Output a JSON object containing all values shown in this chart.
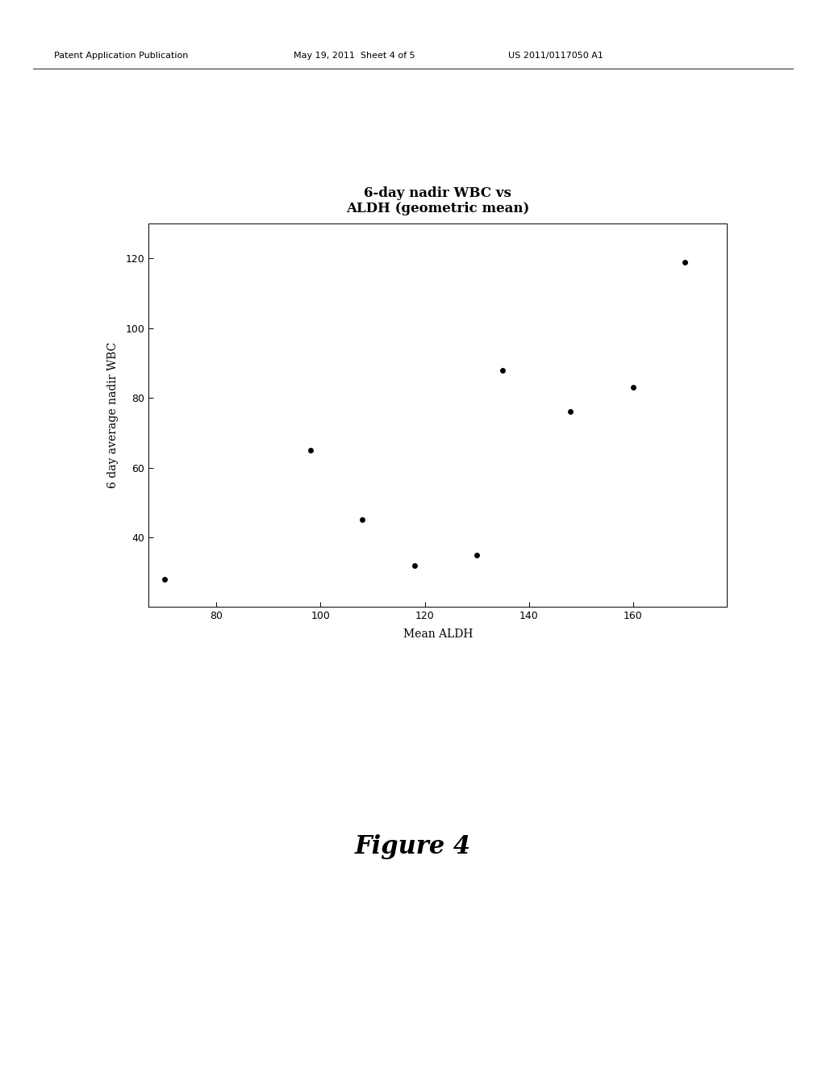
{
  "x": [
    70,
    98,
    108,
    118,
    130,
    135,
    148,
    160,
    170
  ],
  "y": [
    28,
    65,
    45,
    32,
    35,
    88,
    76,
    83,
    119
  ],
  "title_line1": "6-day nadir WBC vs",
  "title_line2": "ALDH (geometric mean)",
  "xlabel": "Mean ALDH",
  "ylabel": "6 day average nadir WBC",
  "xlim": [
    67,
    178
  ],
  "ylim": [
    20,
    130
  ],
  "xticks": [
    80,
    100,
    120,
    140,
    160
  ],
  "yticks": [
    40,
    60,
    80,
    100,
    120
  ],
  "marker_color": "#000000",
  "marker_size": 5,
  "bg_color": "#ffffff",
  "header_left": "Patent Application Publication",
  "header_mid": "May 19, 2011  Sheet 4 of 5",
  "header_right": "US 2011/0117050 A1",
  "figure_label": "Figure 4",
  "title_fontsize": 12,
  "axis_label_fontsize": 10,
  "tick_fontsize": 9,
  "header_fontsize": 8,
  "figure_label_fontsize": 22
}
